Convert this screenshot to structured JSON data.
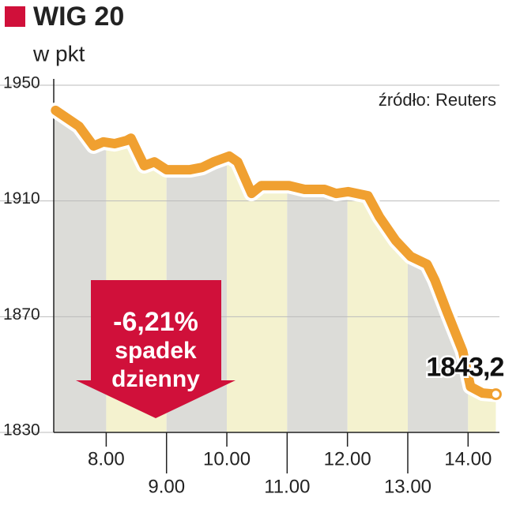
{
  "chart_data": {
    "type": "line",
    "title": "WIG 20",
    "subtitle": "w pkt",
    "source": "źródło: Reuters",
    "annotation": [
      "-6,21%",
      "spadek",
      "dzienny"
    ],
    "x": [
      7.16,
      7.55,
      7.79,
      7.95,
      8.14,
      8.34,
      8.41,
      8.63,
      8.8,
      9.0,
      9.39,
      9.59,
      9.78,
      10.04,
      10.18,
      10.41,
      10.57,
      11.03,
      11.29,
      11.62,
      11.81,
      12.01,
      12.34,
      12.53,
      12.8,
      13.05,
      13.32,
      13.45,
      13.65,
      13.91,
      14.04,
      14.24,
      14.46
    ],
    "series": [
      {
        "color": "#f0a030",
        "values": [
          1941.3,
          1935.8,
          1929,
          1930.4,
          1929.8,
          1930.9,
          1931.7,
          1922.2,
          1923.5,
          1920.8,
          1920.8,
          1921.6,
          1923.5,
          1925.5,
          1923.5,
          1912.6,
          1915.3,
          1915.3,
          1914,
          1914,
          1912.6,
          1913.2,
          1911.8,
          1904.5,
          1896.3,
          1890.8,
          1888.1,
          1882.6,
          1871.7,
          1858.1,
          1845.8,
          1843.6,
          1843.2
        ],
        "value_labels": [
          null,
          null,
          null,
          null,
          null,
          null,
          null,
          null,
          null,
          null,
          null,
          null,
          null,
          null,
          null,
          null,
          null,
          null,
          null,
          null,
          null,
          null,
          null,
          null,
          null,
          null,
          null,
          null,
          null,
          null,
          null,
          null,
          "1843,2"
        ]
      }
    ],
    "xlim": [
      7.13,
      14.52
    ],
    "ylim": [
      1830,
      1950
    ],
    "xticks": [
      {
        "value": 8,
        "label": "8.00"
      },
      {
        "value": 9,
        "label": "9.00"
      },
      {
        "value": 10,
        "label": "10.00"
      },
      {
        "value": 11,
        "label": "11.00"
      },
      {
        "value": 12,
        "label": "12.00"
      },
      {
        "value": 13,
        "label": "13.00"
      },
      {
        "value": 14,
        "label": "14.00"
      }
    ],
    "yticks": [
      1830,
      1870,
      1910,
      1950
    ],
    "grid": true
  }
}
